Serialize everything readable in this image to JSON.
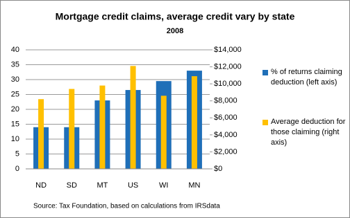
{
  "chart_data": {
    "type": "bar",
    "title": "Mortgage credit claims, average credit vary by state",
    "subtitle": "2008",
    "source": "Source: Tax Foundation, based on calculations from IRSdata",
    "categories": [
      "ND",
      "SD",
      "MT",
      "US",
      "WI",
      "MN"
    ],
    "series": [
      {
        "name": "% of returns claiming deduction (left axis)",
        "color": "#1f6fb8",
        "values": [
          14,
          14,
          23,
          26.5,
          29.5,
          33
        ]
      },
      {
        "name": "Average deduction for those claiming (right axis)",
        "color": "#ffc000",
        "axis": "y2",
        "values": [
          8200,
          9400,
          9800,
          12100,
          8600,
          10900
        ]
      }
    ],
    "ylim": [
      0,
      40
    ],
    "yticks": [
      0,
      5,
      10,
      15,
      20,
      25,
      30,
      35,
      40
    ],
    "y2lim": [
      0,
      14000
    ],
    "y2ticks": [
      {
        "value": 0,
        "label": "$0"
      },
      {
        "value": 2000,
        "label": "$2,000"
      },
      {
        "value": 4000,
        "label": "$4,000"
      },
      {
        "value": 6000,
        "label": "$6,000"
      },
      {
        "value": 8000,
        "label": "$8,000"
      },
      {
        "value": 10000,
        "label": "$10,000"
      },
      {
        "value": 12000,
        "label": "$12,000"
      },
      {
        "value": 14000,
        "label": "$14,000"
      }
    ],
    "grid": true,
    "legend": "right"
  }
}
